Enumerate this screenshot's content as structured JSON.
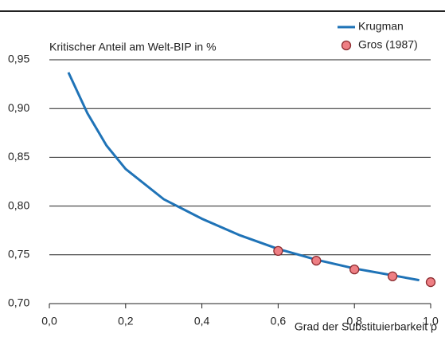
{
  "chart_data": {
    "type": "line",
    "y_label": "Kritischer Anteil am Welt-BIP in %",
    "x_label": "Grad der Substituierbarkeit ρ",
    "series": [
      {
        "name": "Krugman",
        "type": "line",
        "color": "#1f73b7",
        "x": [
          0.05,
          0.1,
          0.15,
          0.2,
          0.3,
          0.4,
          0.5,
          0.6,
          0.7,
          0.8,
          0.9,
          0.97
        ],
        "values": [
          0.937,
          0.895,
          0.862,
          0.838,
          0.807,
          0.787,
          0.77,
          0.756,
          0.745,
          0.736,
          0.729,
          0.724
        ]
      },
      {
        "name": "Gros (1987)",
        "type": "scatter",
        "color": "#ee7f84",
        "x": [
          0.6,
          0.7,
          0.8,
          0.9,
          1.0
        ],
        "values": [
          0.754,
          0.744,
          0.735,
          0.728,
          0.722
        ]
      }
    ],
    "xlim": [
      0,
      1
    ],
    "ylim": [
      0.7,
      0.95
    ],
    "xticks": [
      {
        "value": 0,
        "label": "0,0"
      },
      {
        "value": 0.2,
        "label": "0,2"
      },
      {
        "value": 0.4,
        "label": "0,4"
      },
      {
        "value": 0.6,
        "label": "0,6"
      },
      {
        "value": 0.8,
        "label": "0,8"
      },
      {
        "value": 1,
        "label": "1,0"
      }
    ],
    "yticks": [
      {
        "value": 0.7,
        "label": "0,70"
      },
      {
        "value": 0.75,
        "label": "0,75"
      },
      {
        "value": 0.8,
        "label": "0,80"
      },
      {
        "value": 0.85,
        "label": "0,85"
      },
      {
        "value": 0.9,
        "label": "0,90"
      },
      {
        "value": 0.95,
        "label": "0,95"
      }
    ],
    "grid": true,
    "legend": "upper right"
  }
}
